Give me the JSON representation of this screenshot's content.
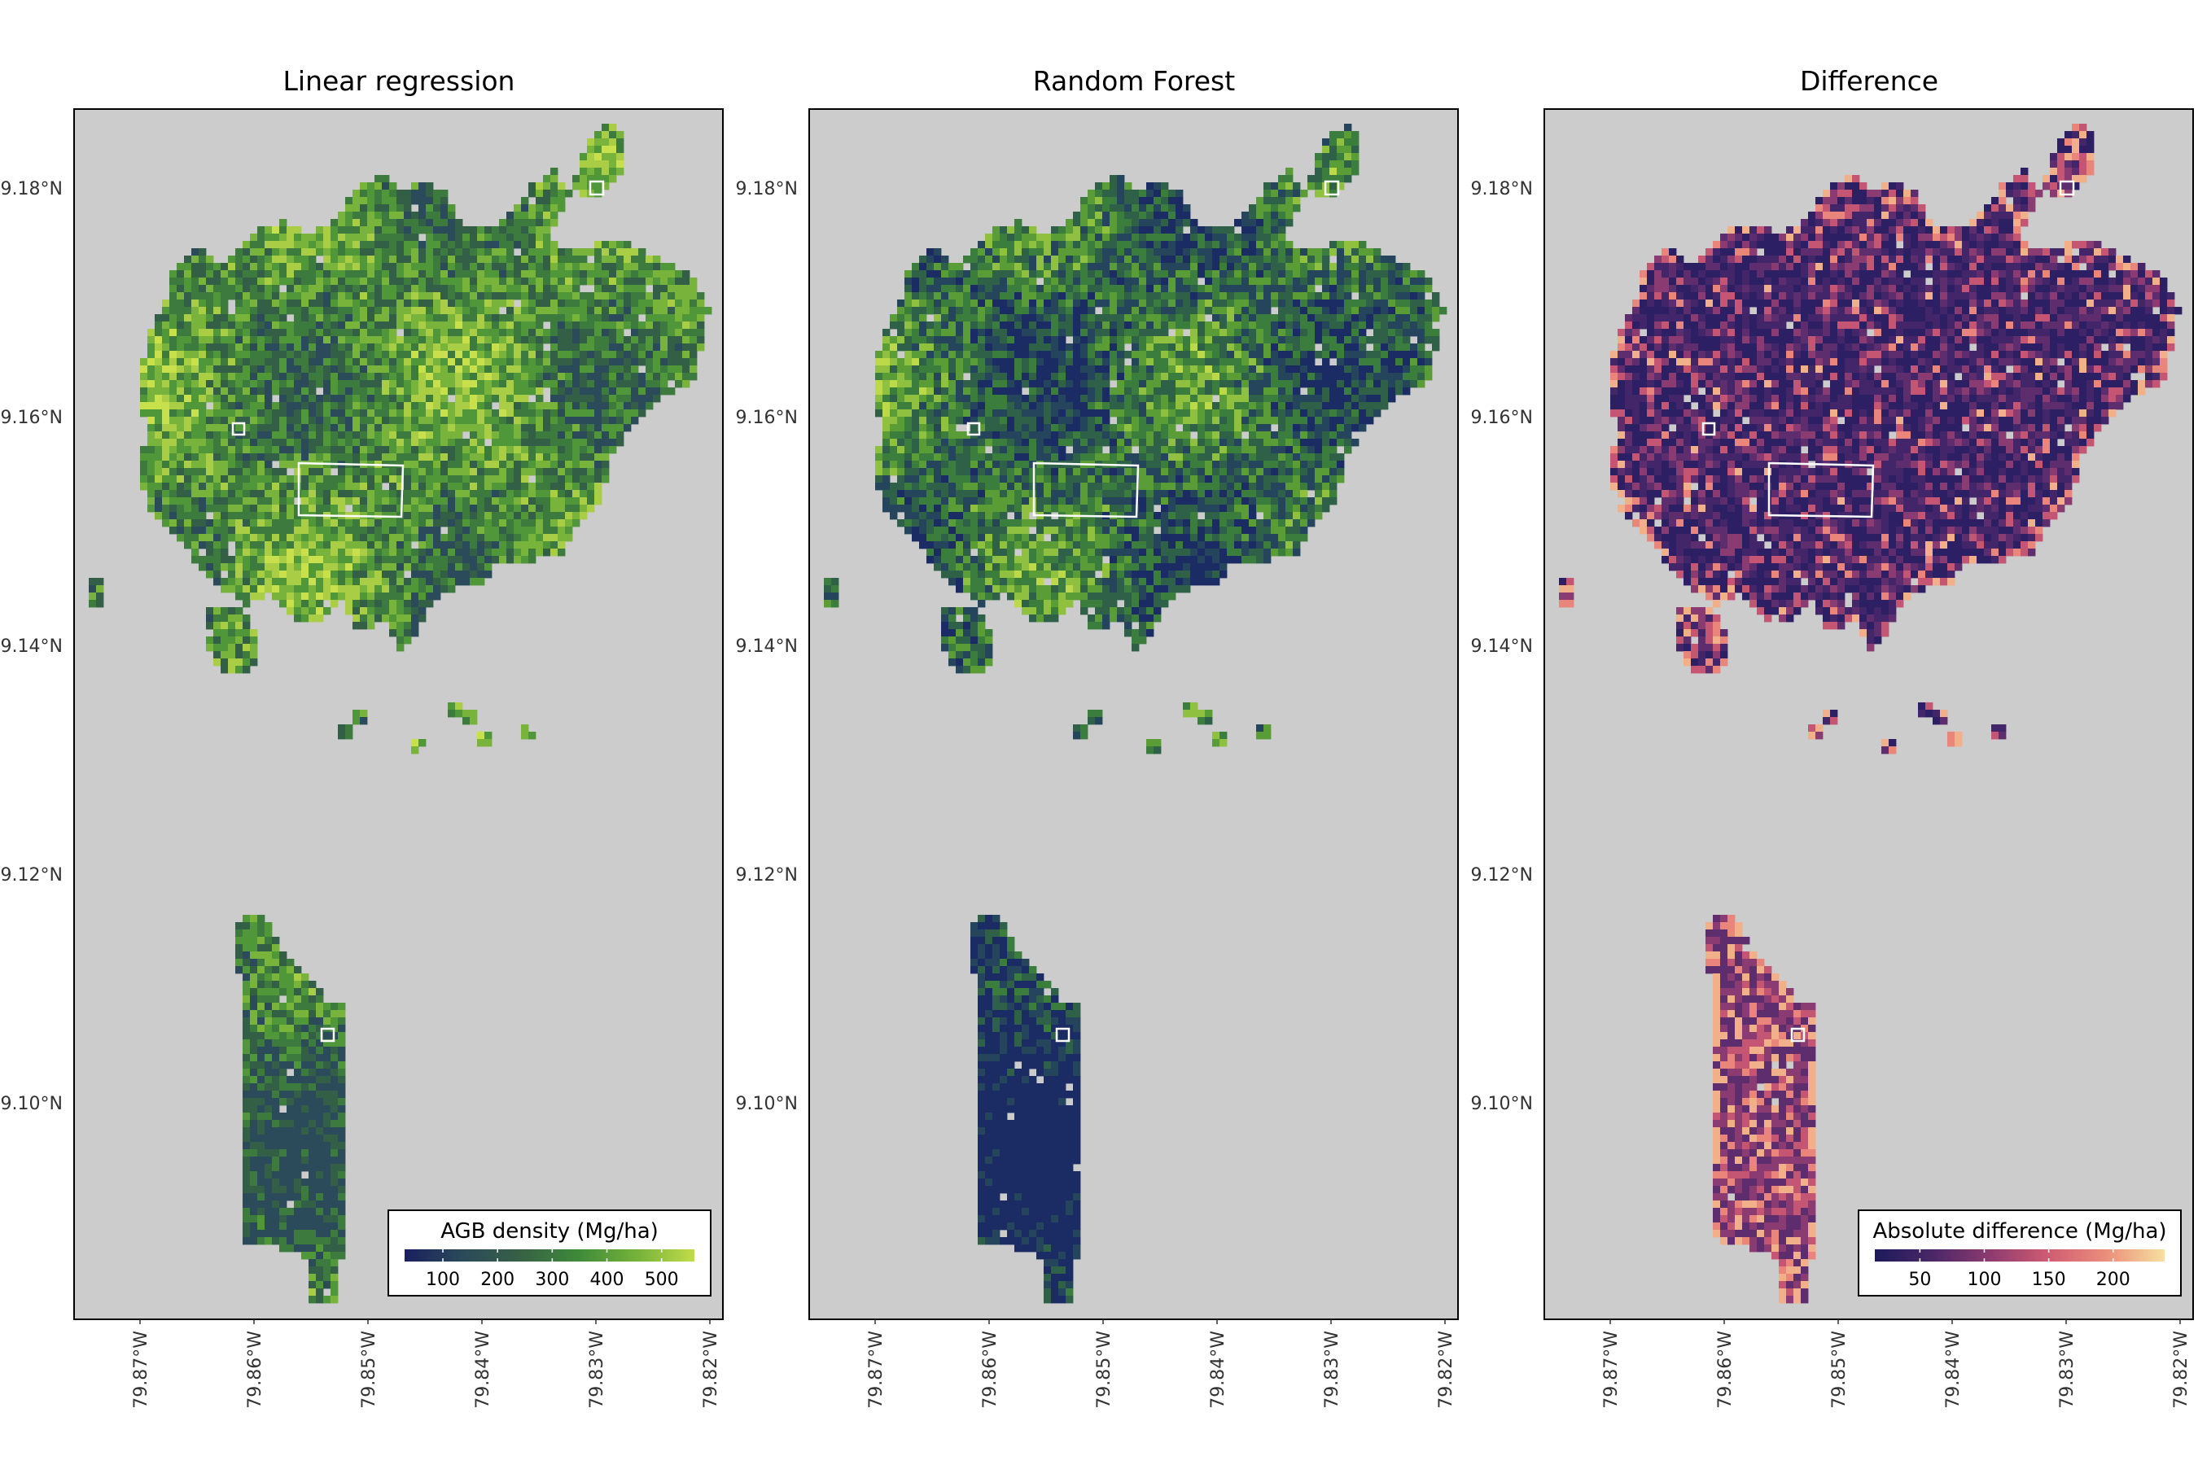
{
  "panels": [
    {
      "title": "Linear regression",
      "palette": "agb"
    },
    {
      "title": "Random Forest",
      "palette": "agb_rf"
    },
    {
      "title": "Difference",
      "palette": "diff"
    }
  ],
  "axes": {
    "lat_ticks": [
      "9.18°N",
      "9.16°N",
      "9.14°N",
      "9.12°N",
      "9.10°N"
    ],
    "lon_ticks": [
      "79.87°W",
      "79.86°W",
      "79.85°W",
      "79.84°W",
      "79.83°W",
      "79.82°W"
    ],
    "lat_values": [
      9.18,
      9.16,
      9.14,
      9.12,
      9.1
    ],
    "lon_values": [
      -79.87,
      -79.86,
      -79.85,
      -79.84,
      -79.83,
      -79.82
    ],
    "background_color": "#cccccc"
  },
  "legends": {
    "agb": {
      "title": "AGB density (Mg/ha)",
      "ticks": [
        "100",
        "200",
        "300",
        "400",
        "500"
      ],
      "tick_values": [
        100,
        200,
        300,
        400,
        500
      ],
      "range": [
        30,
        560
      ],
      "colors": [
        "#1a1f5e",
        "#2a4a5a",
        "#376145",
        "#3f8a3a",
        "#74b23a",
        "#c2dc4a"
      ]
    },
    "diff": {
      "title": "Absolute difference (Mg/ha)",
      "ticks": [
        "50",
        "100",
        "150",
        "200"
      ],
      "tick_values": [
        50,
        100,
        150,
        200
      ],
      "range": [
        15,
        240
      ],
      "colors": [
        "#1d1a5a",
        "#4b2767",
        "#8e3b6f",
        "#d05c72",
        "#eb8f7c",
        "#f7e0a0"
      ]
    }
  },
  "highlight_boxes": [
    "small-box-northeast",
    "small-box-west",
    "rectangle-center",
    "small-box-south"
  ]
}
